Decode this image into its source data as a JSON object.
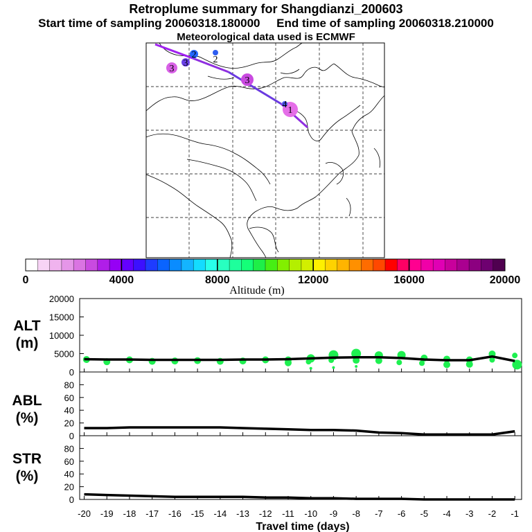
{
  "header": {
    "title": "Retroplume summary for Shangdianzi_200603",
    "start_label": "Start time of sampling 20060318.180000",
    "end_label": "End time of sampling 20060318.210000",
    "met_label": "Meteorological data used is ECMWF"
  },
  "colors": {
    "palette": [
      "#ffffff",
      "#f7d4f5",
      "#f0b3ee",
      "#e596e8",
      "#da74e2",
      "#c94ae0",
      "#b01ee8",
      "#9600f5",
      "#6400ff",
      "#3c10ff",
      "#1e3cff",
      "#0a64ff",
      "#0a8cff",
      "#14b4ff",
      "#14dcff",
      "#28ffea",
      "#28ffc0",
      "#1eff9c",
      "#14ff78",
      "#1eef48",
      "#46ef14",
      "#82ef00",
      "#b4ef00",
      "#d2ef00",
      "#fff000",
      "#ffd200",
      "#ffb400",
      "#ff9000",
      "#ff6c00",
      "#ff4800",
      "#ff0000",
      "#ff0064",
      "#ff0090",
      "#f000a8",
      "#e000b4",
      "#c8009c",
      "#aa0090",
      "#8c0080",
      "#6e0070",
      "#500050"
    ],
    "trajectory": "#8f2ee0",
    "trajectory_end": "#5a2ee0",
    "scatter": "#1ef050"
  },
  "colorbar": {
    "label": "Altitude (m)",
    "ticks": [
      "0",
      "4000",
      "8000",
      "12000",
      "16000",
      "20000"
    ],
    "min": 0,
    "max": 20000
  },
  "map": {
    "plume_markers": [
      {
        "label": "1",
        "color": "#e56ee8"
      },
      {
        "label": "2",
        "color": "#2266ff"
      },
      {
        "label": "3",
        "color": "#c94ae0"
      },
      {
        "label": "2",
        "color": "#2d5df0"
      },
      {
        "label": "3",
        "color": "#6a40e8"
      },
      {
        "label": "3",
        "color": "#d860e6"
      },
      {
        "label": "4",
        "color": "#4a58ee"
      }
    ]
  },
  "panels": {
    "alt_label": "ALT\n(m)",
    "abl_label": "ABL\n(%)",
    "str_label": "STR\n(%)"
  },
  "chart_data": [
    {
      "type": "line",
      "title": "ALT",
      "ylabel": "m",
      "xlabel": "Travel time (days)",
      "ylim": [
        0,
        20000
      ],
      "yticks": [
        "0",
        "5000",
        "10000",
        "15000",
        "20000"
      ],
      "x": [
        -20,
        -19,
        -18,
        -17,
        -16,
        -15,
        -14,
        -13,
        -12,
        -11,
        -10,
        -9,
        -8,
        -7,
        -6,
        -5,
        -4,
        -3,
        -2,
        -1
      ],
      "series": [
        {
          "name": "mean altitude",
          "values": [
            3500,
            3400,
            3400,
            3300,
            3300,
            3300,
            3300,
            3400,
            3400,
            3500,
            3700,
            3900,
            4000,
            4000,
            3800,
            3400,
            3200,
            3200,
            4200,
            3000
          ]
        }
      ],
      "scatter": [
        {
          "x": -19.9,
          "y": 3400,
          "s": 5
        },
        {
          "x": -19.0,
          "y": 2800,
          "s": 5
        },
        {
          "x": -18.0,
          "y": 3300,
          "s": 5
        },
        {
          "x": -17.0,
          "y": 2900,
          "s": 5
        },
        {
          "x": -16.0,
          "y": 3000,
          "s": 5
        },
        {
          "x": -15.0,
          "y": 3100,
          "s": 5
        },
        {
          "x": -14.0,
          "y": 2900,
          "s": 5
        },
        {
          "x": -13.0,
          "y": 3000,
          "s": 5
        },
        {
          "x": -12.0,
          "y": 3300,
          "s": 5
        },
        {
          "x": -11.0,
          "y": 3300,
          "s": 5
        },
        {
          "x": -11.0,
          "y": 2500,
          "s": 5
        },
        {
          "x": -10.0,
          "y": 3700,
          "s": 6
        },
        {
          "x": -10.1,
          "y": 2800,
          "s": 4
        },
        {
          "x": -10.0,
          "y": 1000,
          "s": 2
        },
        {
          "x": -9.0,
          "y": 4600,
          "s": 7
        },
        {
          "x": -9.1,
          "y": 3200,
          "s": 4
        },
        {
          "x": -9.0,
          "y": 1200,
          "s": 2
        },
        {
          "x": -8.0,
          "y": 5000,
          "s": 7
        },
        {
          "x": -8.0,
          "y": 3200,
          "s": 5
        },
        {
          "x": -8.0,
          "y": 1500,
          "s": 2
        },
        {
          "x": -7.0,
          "y": 4500,
          "s": 6
        },
        {
          "x": -7.0,
          "y": 3100,
          "s": 5
        },
        {
          "x": -6.0,
          "y": 4600,
          "s": 6
        },
        {
          "x": -6.1,
          "y": 2600,
          "s": 4
        },
        {
          "x": -5.0,
          "y": 3800,
          "s": 5
        },
        {
          "x": -5.1,
          "y": 2400,
          "s": 4
        },
        {
          "x": -4.0,
          "y": 3500,
          "s": 5
        },
        {
          "x": -4.0,
          "y": 2000,
          "s": 5
        },
        {
          "x": -3.0,
          "y": 3300,
          "s": 5
        },
        {
          "x": -3.0,
          "y": 2100,
          "s": 5
        },
        {
          "x": -2.0,
          "y": 4900,
          "s": 5
        },
        {
          "x": -2.0,
          "y": 3300,
          "s": 4
        },
        {
          "x": -1.0,
          "y": 4500,
          "s": 4
        },
        {
          "x": -0.9,
          "y": 2000,
          "s": 7
        }
      ]
    },
    {
      "type": "line",
      "title": "ABL",
      "ylabel": "%",
      "xlabel": "Travel time (days)",
      "ylim": [
        0,
        100
      ],
      "yticks": [
        "0",
        "20",
        "40",
        "60",
        "80"
      ],
      "x": [
        -20,
        -19,
        -18,
        -17,
        -16,
        -15,
        -14,
        -13,
        -12,
        -11,
        -10,
        -9,
        -8,
        -7,
        -6,
        -5,
        -4,
        -3,
        -2,
        -1
      ],
      "series": [
        {
          "name": "fraction in ABL",
          "values": [
            12,
            12,
            13,
            13,
            13,
            13,
            13,
            12,
            11,
            10,
            9,
            9,
            8,
            5,
            4,
            2,
            2,
            2,
            2,
            7
          ]
        }
      ]
    },
    {
      "type": "line",
      "title": "STR",
      "ylabel": "%",
      "xlabel": "Travel time (days)",
      "ylim": [
        0,
        100
      ],
      "yticks": [
        "0",
        "20",
        "40",
        "60",
        "80"
      ],
      "x": [
        -20,
        -19,
        -18,
        -17,
        -16,
        -15,
        -14,
        -13,
        -12,
        -11,
        -10,
        -9,
        -8,
        -7,
        -6,
        -5,
        -4,
        -3,
        -2,
        -1
      ],
      "series": [
        {
          "name": "fraction in stratosphere",
          "values": [
            8,
            7,
            6,
            5,
            4,
            4,
            4,
            4,
            3,
            3,
            2,
            2,
            1,
            1,
            1,
            0,
            0,
            0,
            0,
            0
          ]
        }
      ]
    },
    {
      "type": "table",
      "title": "x-axis",
      "xticks": [
        "-20",
        "-19",
        "-18",
        "-17",
        "-16",
        "-15",
        "-14",
        "-13",
        "-12",
        "-11",
        "-10",
        "-9",
        "-8",
        "-7",
        "-6",
        "-5",
        "-4",
        "-3",
        "-2",
        "-1"
      ]
    }
  ]
}
